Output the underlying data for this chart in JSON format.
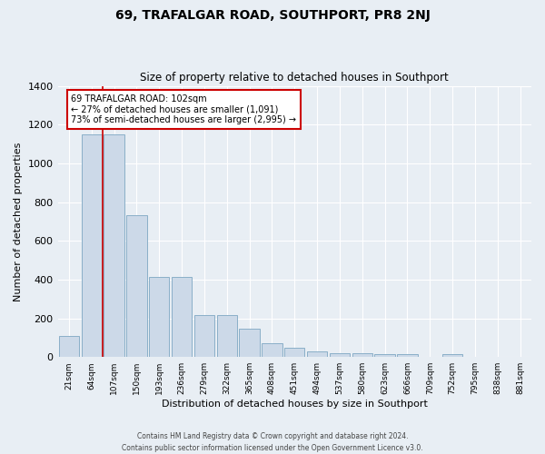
{
  "title": "69, TRAFALGAR ROAD, SOUTHPORT, PR8 2NJ",
  "subtitle": "Size of property relative to detached houses in Southport",
  "xlabel": "Distribution of detached houses by size in Southport",
  "ylabel": "Number of detached properties",
  "categories": [
    "21sqm",
    "64sqm",
    "107sqm",
    "150sqm",
    "193sqm",
    "236sqm",
    "279sqm",
    "322sqm",
    "365sqm",
    "408sqm",
    "451sqm",
    "494sqm",
    "537sqm",
    "580sqm",
    "623sqm",
    "666sqm",
    "709sqm",
    "752sqm",
    "795sqm",
    "838sqm",
    "881sqm"
  ],
  "bar_heights": [
    110,
    1150,
    1150,
    730,
    415,
    415,
    215,
    215,
    148,
    70,
    48,
    28,
    20,
    20,
    13,
    13,
    0,
    13,
    0,
    0,
    0
  ],
  "bar_color": "#ccd9e8",
  "bar_edge_color": "#8aafc8",
  "red_line_x": 1.5,
  "annotation_text": "69 TRAFALGAR ROAD: 102sqm\n← 27% of detached houses are smaller (1,091)\n73% of semi-detached houses are larger (2,995) →",
  "annotation_box_color": "#ffffff",
  "annotation_box_edge_color": "#cc0000",
  "ylim": [
    0,
    1400
  ],
  "yticks": [
    0,
    200,
    400,
    600,
    800,
    1000,
    1200,
    1400
  ],
  "background_color": "#e8eef4",
  "grid_color": "#ffffff",
  "footer_line1": "Contains HM Land Registry data © Crown copyright and database right 2024.",
  "footer_line2": "Contains public sector information licensed under the Open Government Licence v3.0."
}
